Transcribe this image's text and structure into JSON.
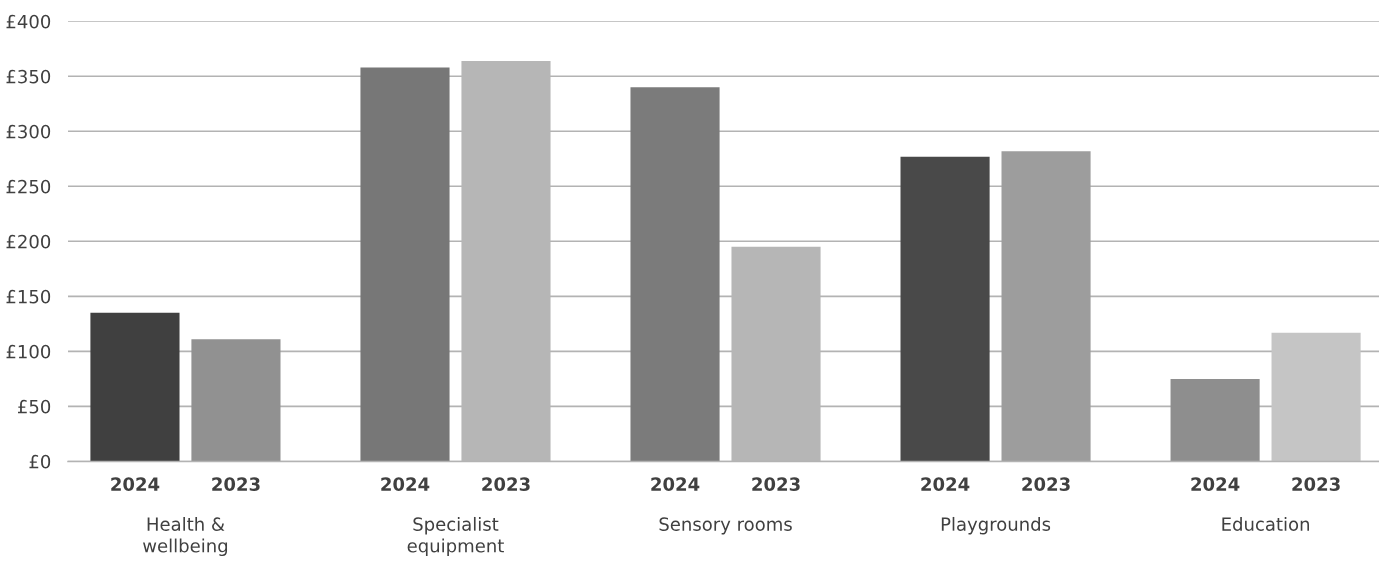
{
  "chart_data": {
    "type": "bar",
    "categories": [
      "Health &\nwellbeing",
      "Specialist\nequipment",
      "Sensory rooms",
      "Playgrounds",
      "Education"
    ],
    "series": [
      {
        "name": "2024",
        "values": [
          135,
          358,
          340,
          277,
          75
        ],
        "colors": [
          "#404040",
          "#777777",
          "#7b7b7b",
          "#494949",
          "#8e8e8e"
        ]
      },
      {
        "name": "2023",
        "values": [
          111,
          364,
          195,
          282,
          117
        ],
        "colors": [
          "#919191",
          "#b6b6b6",
          "#b6b6b6",
          "#9d9d9d",
          "#c5c5c5"
        ]
      }
    ],
    "ylim": [
      0,
      400
    ],
    "yticks": [
      {
        "value": 0,
        "label": "£0"
      },
      {
        "value": 50,
        "label": "£50"
      },
      {
        "value": 100,
        "label": "£100"
      },
      {
        "value": 150,
        "label": "£150"
      },
      {
        "value": 200,
        "label": "£200"
      },
      {
        "value": 250,
        "label": "£250"
      },
      {
        "value": 300,
        "label": "£300"
      },
      {
        "value": 350,
        "label": "£350"
      },
      {
        "value": 400,
        "label": "£400"
      }
    ],
    "grid": "y"
  }
}
